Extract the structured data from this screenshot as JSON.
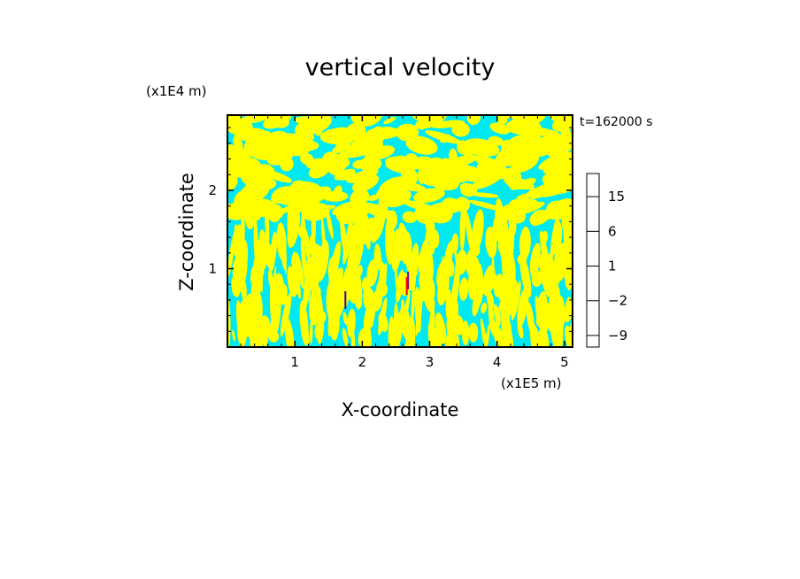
{
  "chart_data": {
    "type": "heatmap",
    "title": "vertical velocity",
    "time_label": "t=162000 s",
    "xlabel": "X-coordinate",
    "ylabel": "Z-coordinate",
    "x_unit": "(x1E5 m)",
    "y_unit": "(x1E4 m)",
    "xlim": [
      0,
      5.12
    ],
    "ylim": [
      0,
      2.96
    ],
    "x_ticks": [
      1,
      2,
      3,
      4,
      5
    ],
    "x_tick_labels": [
      "1",
      "2",
      "3",
      "4",
      "5"
    ],
    "y_ticks": [
      1,
      2
    ],
    "y_tick_labels": [
      "1",
      "2"
    ],
    "grid": false,
    "field_colors": {
      "positive": "#ffff00",
      "negative": "#00e8f0"
    },
    "colorbar": {
      "levels": [
        "-12",
        "-9",
        "-6",
        "-4",
        "-2",
        "-1",
        "0",
        "1",
        "2",
        "4",
        "6",
        "9",
        "12",
        "15",
        "20"
      ],
      "colors": [
        "#ff00a0",
        "#e000a0",
        "#b000b0",
        "#7000b0",
        "#3000c0",
        "#0050e0",
        "#00e8f0",
        "#ffff00",
        "#ffd700",
        "#ff9000",
        "#ff5000",
        "#ff0000",
        "#ff7070",
        "#ffb0b0",
        "#ffe0e0"
      ],
      "tick_labels": [
        {
          "level": "15",
          "text": "15"
        },
        {
          "level": "6",
          "text": "6"
        },
        {
          "level": "1",
          "text": "1"
        },
        {
          "level": "-2",
          "text": "−2"
        },
        {
          "level": "-9",
          "text": "−9"
        }
      ]
    }
  }
}
